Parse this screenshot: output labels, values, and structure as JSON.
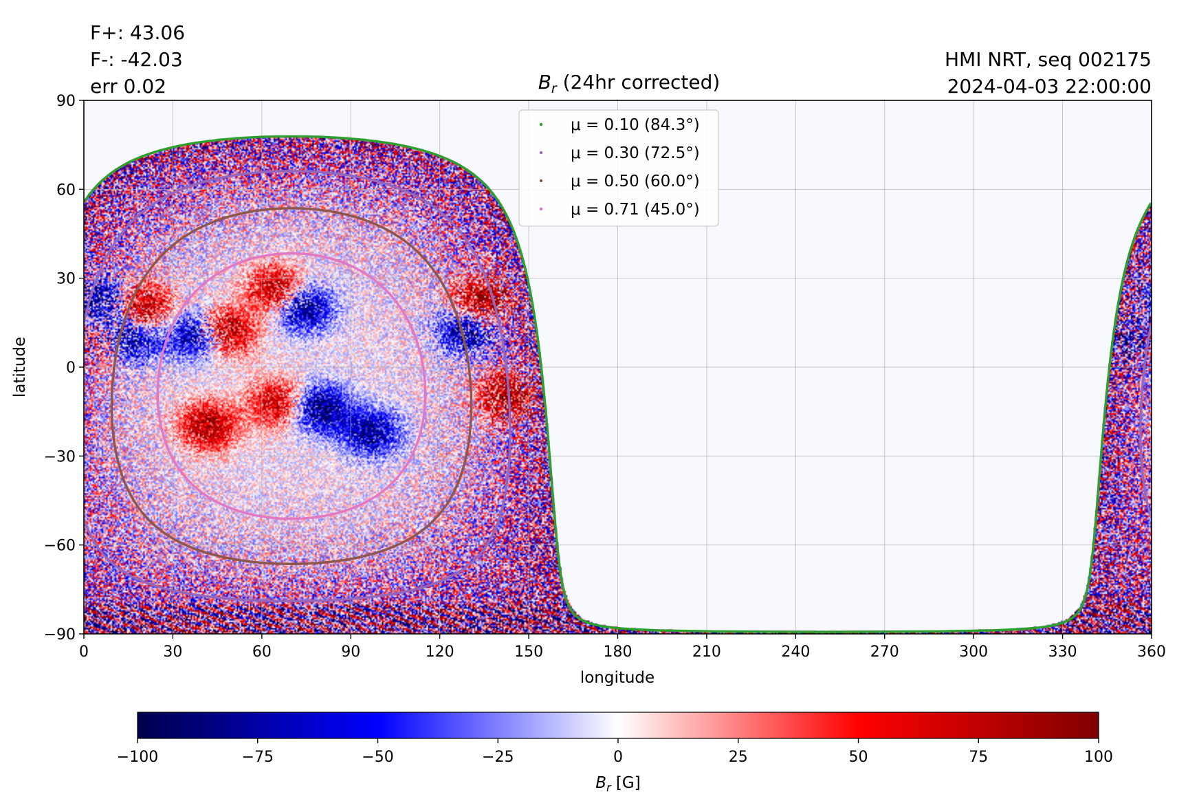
{
  "header": {
    "fplus": "F+: 43.06",
    "fminus": "F-: -42.03",
    "err": "err 0.02",
    "instrument": "HMI NRT, seq 002175",
    "datetime": "2024-04-03 22:00:00"
  },
  "chart_data": {
    "type": "heatmap",
    "title": "B_r (24hr corrected)",
    "title_parts": {
      "symbol": "B",
      "subscript": "r",
      "rest": " (24hr corrected)"
    },
    "xlabel": "longitude",
    "ylabel": "latitude",
    "xlim": [
      0,
      360
    ],
    "ylim": [
      -90,
      90
    ],
    "xticks": [
      0,
      30,
      60,
      90,
      120,
      150,
      180,
      210,
      240,
      270,
      300,
      330,
      360
    ],
    "yticks": [
      90,
      60,
      30,
      0,
      -30,
      -60,
      -90
    ],
    "ytick_labels": [
      "90",
      "60",
      "30",
      "0",
      "−30",
      "−60",
      "−90"
    ],
    "grid": true,
    "colormap": "seismic",
    "colormap_stops": [
      "#00004c",
      "#0000ff",
      "#ffffff",
      "#ff0000",
      "#800000"
    ],
    "background_color": "#f8f8ff",
    "legend_position": "upper center",
    "contours": [
      {
        "label": "μ = 0.10 (84.3°)",
        "color": "#2ca02c",
        "mu": 0.1,
        "angle_deg": 84.3
      },
      {
        "label": "μ = 0.30 (72.5°)",
        "color": "#9467bd",
        "mu": 0.3,
        "angle_deg": 72.5
      },
      {
        "label": "μ = 0.50 (60.0°)",
        "color": "#8c564b",
        "mu": 0.5,
        "angle_deg": 60.0
      },
      {
        "label": "μ = 0.71 (45.0°)",
        "color": "#e377c2",
        "mu": 0.71,
        "angle_deg": 45.0
      }
    ],
    "disk_center": {
      "longitude": 70,
      "latitude": -6.4
    },
    "regions": [
      {
        "polarity": "positive",
        "longitude": 20,
        "latitude": 20,
        "peak": 90
      },
      {
        "polarity": "negative",
        "longitude": 16,
        "latitude": 10,
        "peak": -80
      },
      {
        "polarity": "positive",
        "longitude": 48,
        "latitude": 12,
        "peak": 90
      },
      {
        "polarity": "negative",
        "longitude": 38,
        "latitude": 11,
        "peak": -80
      },
      {
        "polarity": "positive",
        "longitude": 42,
        "latitude": -20,
        "peak": 85
      },
      {
        "polarity": "positive",
        "longitude": 65,
        "latitude": -12,
        "peak": 70
      },
      {
        "polarity": "negative",
        "longitude": 74,
        "latitude": 20,
        "peak": -85
      },
      {
        "polarity": "negative",
        "longitude": 80,
        "latitude": -14,
        "peak": -90
      },
      {
        "polarity": "positive",
        "longitude": 65,
        "latitude": 26,
        "peak": 80
      },
      {
        "polarity": "negative",
        "longitude": 97,
        "latitude": -22,
        "peak": -80
      },
      {
        "polarity": "positive",
        "longitude": 134,
        "latitude": 22,
        "peak": 95
      },
      {
        "polarity": "negative",
        "longitude": 129,
        "latitude": 13,
        "peak": -80
      },
      {
        "polarity": "positive",
        "longitude": 143,
        "latitude": -10,
        "peak": 85
      },
      {
        "polarity": "negative",
        "longitude": 6,
        "latitude": 22,
        "peak": -70
      },
      {
        "polarity": "positive",
        "longitude": 2,
        "latitude": 8,
        "peak": 90
      },
      {
        "polarity": "negative",
        "longitude": 357,
        "latitude": 8,
        "peak": -90
      }
    ],
    "colorbar": {
      "label": "B_r [G]",
      "label_parts": {
        "symbol": "B",
        "subscript": "r",
        "rest": " [G]"
      },
      "min": -100,
      "max": 100,
      "ticks": [
        -100,
        -75,
        -50,
        -25,
        0,
        25,
        50,
        75,
        100
      ],
      "tick_labels": [
        "−100",
        "−75",
        "−50",
        "−25",
        "0",
        "25",
        "50",
        "75",
        "100"
      ]
    }
  }
}
